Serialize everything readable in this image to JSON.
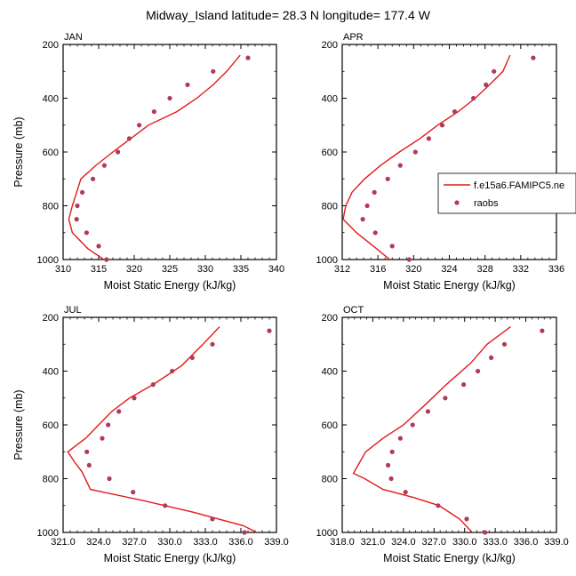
{
  "title": "Midway_Island  latitude= 28.3 N longitude= 177.4 W",
  "colors": {
    "model": "#e31a1c",
    "obs": "#b03a5b"
  },
  "legend": {
    "model": "f.e15a6.FAMIPC5.ne",
    "obs": "raobs"
  },
  "chart_data": [
    {
      "type": "line",
      "panel": "JAN",
      "xlabel": "Moist Static Energy (kJ/kg)",
      "ylabel": "Pressure (mb)",
      "xlim": [
        310,
        340
      ],
      "ylim": [
        1000,
        200
      ],
      "xticks": [
        310,
        315,
        320,
        325,
        330,
        335,
        340
      ],
      "xtick_labels": [
        "310",
        "315",
        "320",
        "325",
        "330",
        "335",
        "340"
      ],
      "yticks": [
        200,
        400,
        600,
        800,
        1000
      ],
      "ytick_labels": [
        "200",
        "400",
        "600",
        "800",
        "1000"
      ],
      "series": [
        {
          "kind": "line",
          "x": [
            316.3,
            313.5,
            311.3,
            310.8,
            311.3,
            311.9,
            312.5,
            314.6,
            317.0,
            319.5,
            322.0,
            326.0,
            328.8,
            331.1,
            333.0,
            334.9
          ],
          "y": [
            1010,
            960,
            900,
            850,
            800,
            750,
            700,
            650,
            600,
            550,
            500,
            450,
            400,
            350,
            300,
            240
          ]
        },
        {
          "kind": "scatter",
          "x": [
            316.1,
            315.0,
            313.3,
            311.9,
            312.0,
            312.7,
            314.2,
            315.8,
            317.7,
            319.3,
            320.7,
            322.8,
            325.0,
            327.5,
            331.1,
            336.0
          ],
          "y": [
            1000,
            950,
            900,
            850,
            800,
            750,
            700,
            650,
            600,
            550,
            500,
            450,
            400,
            350,
            300,
            250
          ]
        }
      ]
    },
    {
      "type": "line",
      "panel": "APR",
      "xlabel": "Moist Static Energy (kJ/kg)",
      "ylabel": "",
      "xlim": [
        312,
        336
      ],
      "ylim": [
        1000,
        200
      ],
      "xticks": [
        312,
        316,
        320,
        324,
        328,
        332,
        336
      ],
      "xtick_labels": [
        "312",
        "316",
        "320",
        "324",
        "328",
        "332",
        "336"
      ],
      "yticks": [
        200,
        400,
        600,
        800,
        1000
      ],
      "ytick_labels": [
        "200",
        "400",
        "600",
        "800",
        "1000"
      ],
      "series": [
        {
          "kind": "line",
          "x": [
            317.7,
            315.5,
            313.6,
            312.1,
            312.4,
            313.1,
            314.5,
            316.3,
            318.4,
            320.7,
            322.7,
            325.0,
            326.9,
            328.5,
            330.0,
            330.8
          ],
          "y": [
            1010,
            950,
            900,
            850,
            800,
            750,
            700,
            650,
            600,
            550,
            500,
            450,
            400,
            350,
            300,
            240
          ]
        },
        {
          "kind": "scatter",
          "x": [
            319.5,
            317.6,
            315.7,
            314.3,
            314.8,
            315.6,
            317.1,
            318.5,
            320.2,
            321.7,
            323.2,
            324.6,
            326.7,
            328.1,
            329.0,
            333.4
          ],
          "y": [
            1000,
            950,
            900,
            850,
            800,
            750,
            700,
            650,
            600,
            550,
            500,
            450,
            400,
            350,
            300,
            250
          ]
        }
      ]
    },
    {
      "type": "line",
      "panel": "JUL",
      "xlabel": "Moist Static Energy (kJ/kg)",
      "ylabel": "Pressure (mb)",
      "xlim": [
        321,
        339
      ],
      "ylim": [
        1000,
        200
      ],
      "xticks": [
        321,
        324,
        327,
        330,
        333,
        336,
        339
      ],
      "xtick_labels": [
        "321.0",
        "324.0",
        "327.0",
        "330.0",
        "333.0",
        "336.0",
        "339.0"
      ],
      "yticks": [
        200,
        400,
        600,
        800,
        1000
      ],
      "ytick_labels": [
        "200",
        "400",
        "600",
        "800",
        "1000"
      ],
      "series": [
        {
          "kind": "line",
          "x": [
            337.8,
            336.2,
            332.0,
            327.6,
            323.3,
            322.6,
            322.0,
            321.4,
            322.9,
            324.0,
            325.1,
            326.6,
            328.6,
            331.0,
            332.8,
            334.2
          ],
          "y": [
            1010,
            975,
            925,
            880,
            840,
            775,
            740,
            700,
            650,
            600,
            550,
            500,
            450,
            380,
            300,
            235
          ]
        },
        {
          "kind": "scatter",
          "x": [
            336.3,
            333.6,
            329.6,
            326.9,
            324.9,
            323.2,
            323.0,
            324.3,
            324.8,
            325.7,
            327.0,
            328.6,
            330.2,
            331.9,
            333.6,
            338.4
          ],
          "y": [
            1000,
            950,
            900,
            850,
            800,
            750,
            700,
            650,
            600,
            550,
            500,
            450,
            400,
            350,
            300,
            250
          ]
        }
      ]
    },
    {
      "type": "line",
      "panel": "OCT",
      "xlabel": "Moist Static Energy (kJ/kg)",
      "ylabel": "",
      "xlim": [
        318,
        339
      ],
      "ylim": [
        1000,
        200
      ],
      "xticks": [
        318,
        321,
        324,
        327,
        330,
        333,
        336,
        339
      ],
      "xtick_labels": [
        "318.0",
        "321.0",
        "324.0",
        "327.0",
        "330.0",
        "333.0",
        "336.0",
        "339.0"
      ],
      "yticks": [
        200,
        400,
        600,
        800,
        1000
      ],
      "ytick_labels": [
        "200",
        "400",
        "600",
        "800",
        "1000"
      ],
      "series": [
        {
          "kind": "line",
          "x": [
            331.0,
            329.5,
            327.5,
            325.0,
            322.0,
            320.2,
            319.1,
            319.7,
            320.3,
            322.0,
            324.0,
            326.0,
            328.2,
            330.6,
            332.2,
            334.5
          ],
          "y": [
            1010,
            950,
            900,
            870,
            840,
            800,
            780,
            740,
            700,
            650,
            600,
            530,
            450,
            370,
            300,
            235
          ]
        },
        {
          "kind": "scatter",
          "x": [
            332.0,
            330.2,
            327.4,
            324.2,
            322.8,
            322.5,
            322.9,
            323.7,
            324.9,
            326.4,
            328.1,
            329.9,
            331.3,
            332.6,
            333.9,
            337.6
          ],
          "y": [
            1000,
            950,
            900,
            850,
            800,
            750,
            700,
            650,
            600,
            550,
            500,
            450,
            400,
            350,
            300,
            250
          ]
        }
      ]
    }
  ]
}
